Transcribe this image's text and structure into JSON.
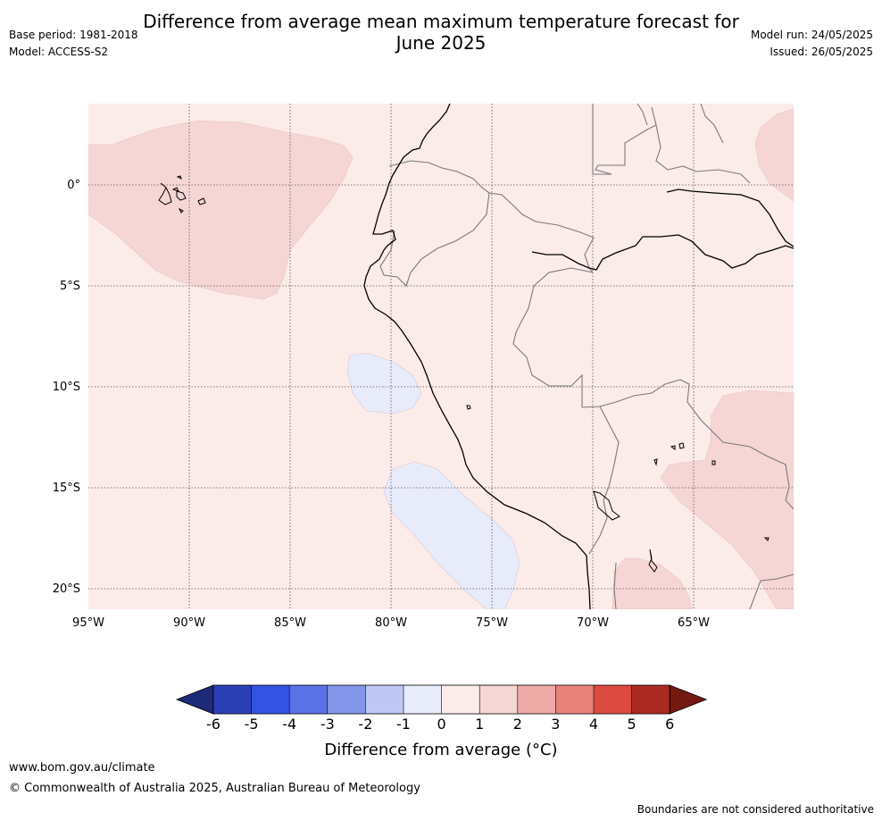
{
  "header": {
    "title_line1": "Difference from average mean maximum temperature forecast for",
    "title_line2": "June 2025",
    "base_period": "Base period: 1981-2018",
    "model": "Model: ACCESS-S2",
    "model_run": "Model run: 24/05/2025",
    "issued": "Issued: 26/05/2025"
  },
  "map": {
    "lat_labels": [
      "0°",
      "5°S",
      "10°S",
      "15°S",
      "20°S"
    ],
    "lon_labels": [
      "95°W",
      "90°W",
      "85°W",
      "80°W",
      "75°W",
      "70°W",
      "65°W"
    ],
    "colors": {
      "anomaly_0_1": "#fbebe9",
      "anomaly_1_2": "#f5d6d4",
      "anomaly_m1_0": "#e8ebfa"
    }
  },
  "colorbar": {
    "title": "Difference from average (°C)",
    "ticks": [
      "-6",
      "-5",
      "-4",
      "-3",
      "-2",
      "-1",
      "0",
      "1",
      "2",
      "3",
      "4",
      "5",
      "6"
    ],
    "colors": [
      "#1c2a78",
      "#2b3fb5",
      "#3353e3",
      "#5b72e6",
      "#8496ea",
      "#bfc8f4",
      "#e8ebfa",
      "#fbebe9",
      "#f5d6d4",
      "#eeaaa6",
      "#e8837c",
      "#db4a3f",
      "#ac2921",
      "#721a12"
    ]
  },
  "footer": {
    "url": "www.bom.gov.au/climate",
    "copyright": "© Commonwealth of Australia 2025, Australian Bureau of Meteorology",
    "disclaimer": "Boundaries are not considered authoritative"
  }
}
